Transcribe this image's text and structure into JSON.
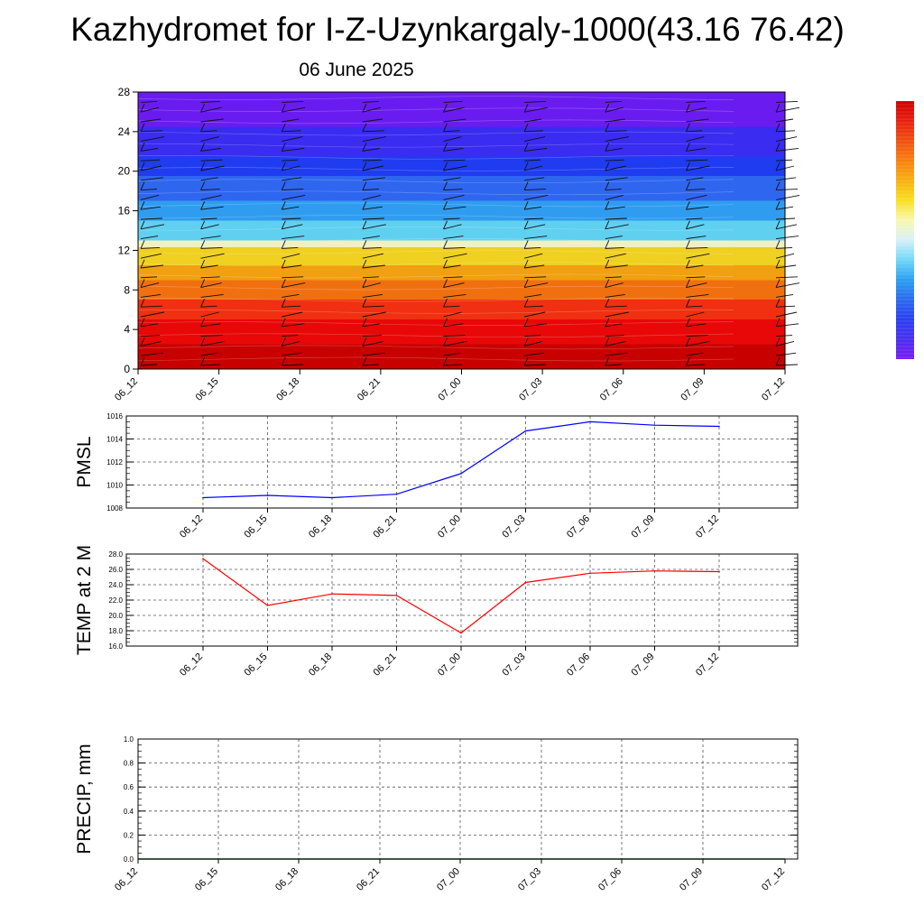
{
  "header": {
    "title": "Kazhydromet for I-Z-Uzynkargaly-1000(43.16 76.42)",
    "date": "06 June 2025"
  },
  "colors": {
    "pmsl_line": "#0000ff",
    "temp_line": "#ff0000",
    "precip_line": "#006400",
    "grid": "#555555"
  },
  "chart_data": [
    {
      "type": "heatmap",
      "name": "cross-section",
      "title": "",
      "xlabel": "",
      "ylabel": "",
      "x_tick_labels": [
        "06_12",
        "06_15",
        "06_18",
        "06_21",
        "07_00",
        "07_03",
        "07_06",
        "07_09",
        "07_12"
      ],
      "y_ticks": [
        0,
        4,
        8,
        12,
        16,
        20,
        24,
        28
      ],
      "ylim": [
        0,
        28
      ],
      "color_levels": [
        "#6a1cf0",
        "#3a2cf0",
        "#1f3cf0",
        "#2f66f0",
        "#2f9cf0",
        "#5fd0f0",
        "#f0f0c0",
        "#f0d020",
        "#f0a010",
        "#f07010",
        "#f03010",
        "#e80808",
        "#c80000"
      ],
      "color_boundaries_y": [
        28,
        24.5,
        21.5,
        19.5,
        17,
        15,
        13,
        12.3,
        10.5,
        9,
        7,
        5,
        2.5,
        0
      ],
      "wind_barbs": "shown at each time step"
    },
    {
      "type": "line",
      "name": "pmsl",
      "ylabel": "PMSL",
      "categories": [
        "06_12",
        "06_15",
        "06_18",
        "06_21",
        "07_00",
        "07_03",
        "07_06",
        "07_09",
        "07_12"
      ],
      "values": [
        1008.9,
        1009.1,
        1008.9,
        1009.2,
        1011.0,
        1014.7,
        1015.5,
        1015.2,
        1015.1
      ],
      "ylim": [
        1008,
        1016
      ],
      "y_ticks": [
        "1008",
        "1010",
        "1012",
        "1014",
        "1016"
      ],
      "grid": true
    },
    {
      "type": "line",
      "name": "temp",
      "ylabel": "TEMP at 2 M",
      "categories": [
        "06_12",
        "06_15",
        "06_18",
        "06_21",
        "07_00",
        "07_03",
        "07_06",
        "07_09",
        "07_12"
      ],
      "values": [
        27.4,
        21.3,
        22.8,
        22.6,
        17.7,
        24.3,
        25.5,
        25.8,
        25.7
      ],
      "ylim": [
        16,
        28
      ],
      "y_ticks": [
        "16.0",
        "18.0",
        "20.0",
        "22.0",
        "24.0",
        "26.0",
        "28.0"
      ],
      "grid": true
    },
    {
      "type": "line",
      "name": "precip",
      "ylabel": "PRECIP, mm",
      "categories": [
        "06_12",
        "06_15",
        "06_18",
        "06_21",
        "07_00",
        "07_03",
        "07_06",
        "07_09",
        "07_12"
      ],
      "values": [
        0,
        0,
        0,
        0,
        0,
        0,
        0,
        0,
        0
      ],
      "ylim": [
        0,
        1
      ],
      "y_ticks": [
        "0.0",
        "0.2",
        "0.4",
        "0.6",
        "0.8",
        "1.0"
      ],
      "grid": true
    }
  ],
  "colorbar": {
    "colors": [
      "#7a1cf0",
      "#4a2ef0",
      "#2a40f0",
      "#2a6af0",
      "#2aa0f0",
      "#70d8f8",
      "#d8f0f8",
      "#f8f8b0",
      "#f8e020",
      "#f8b010",
      "#f88010",
      "#f05010",
      "#e82010",
      "#d00000"
    ]
  }
}
